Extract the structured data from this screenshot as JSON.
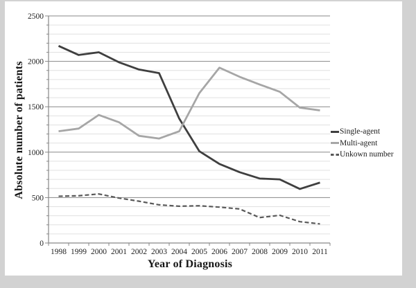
{
  "frame": {
    "background_color": "#d2d2d2",
    "panel_color": "#ffffff"
  },
  "chart_data": {
    "type": "line",
    "title": "",
    "xlabel": "Year of Diagnosis",
    "ylabel": "Absolute number of patients",
    "categories": [
      "1998",
      "1999",
      "2000",
      "2001",
      "2002",
      "2003",
      "2004",
      "2005",
      "2006",
      "2007",
      "2008",
      "2009",
      "2010",
      "2011"
    ],
    "series": [
      {
        "name": "Single-agent",
        "color": "#3f3f3f",
        "line_style": "solid",
        "line_width": 2.8,
        "values": [
          2170,
          2070,
          2100,
          1990,
          1910,
          1870,
          1370,
          1010,
          870,
          780,
          710,
          700,
          595,
          665
        ]
      },
      {
        "name": "Multi-agent",
        "color": "#a6a6a6",
        "line_style": "solid",
        "line_width": 2.8,
        "values": [
          1230,
          1260,
          1410,
          1330,
          1180,
          1150,
          1230,
          1650,
          1930,
          1830,
          1745,
          1665,
          1490,
          1460
        ]
      },
      {
        "name": "Unkown number",
        "color": "#595959",
        "line_style": "dashed",
        "line_width": 2.2,
        "values": [
          515,
          520,
          540,
          495,
          460,
          420,
          405,
          410,
          395,
          375,
          280,
          305,
          235,
          210
        ]
      }
    ],
    "ylim": [
      0,
      2500
    ],
    "ytick_step": 500,
    "minor_ytick_step": 100,
    "grid": {
      "major_color": "#878787",
      "minor_color": "#e0e0e0",
      "axis_color": "#878787",
      "vertical_gridlines": false
    },
    "legend_position": "right-middle",
    "tick_label_color": "#1f1f1f"
  }
}
